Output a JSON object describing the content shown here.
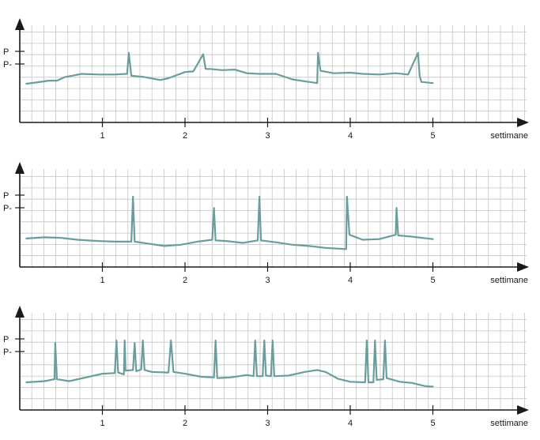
{
  "chart_data": [
    {
      "type": "line",
      "xlabel": "settimane",
      "x_ticks": [
        "1",
        "2",
        "3",
        "4",
        "5"
      ],
      "y_ticks": [
        "P",
        "P-"
      ],
      "xlim": [
        0,
        6
      ],
      "ylim": [
        0,
        10
      ],
      "grid": true,
      "color": "#6a9e9c",
      "series": [
        {
          "x": [
            0.08,
            0.2,
            0.35,
            0.45,
            0.55,
            0.6,
            0.75,
            0.95,
            1.15,
            1.3,
            1.32,
            1.35,
            1.5,
            1.7,
            1.8,
            2.0,
            2.1,
            2.22,
            2.25,
            2.3,
            2.45,
            2.6,
            2.75,
            2.9,
            3.1,
            3.3,
            3.5,
            3.6,
            3.61,
            3.64,
            3.8,
            4.0,
            4.15,
            4.35,
            4.55,
            4.7,
            4.82,
            4.84,
            4.86,
            5.0
          ],
          "y": [
            5.0,
            5.2,
            5.5,
            5.5,
            6.1,
            6.2,
            6.6,
            6.5,
            6.5,
            6.6,
            10.0,
            6.3,
            6.1,
            5.6,
            5.9,
            6.9,
            7.0,
            9.8,
            7.4,
            7.4,
            7.2,
            7.3,
            6.7,
            6.6,
            6.6,
            5.7,
            5.3,
            5.1,
            10.0,
            7.1,
            6.7,
            6.8,
            6.6,
            6.5,
            6.7,
            6.5,
            10.0,
            6.3,
            5.3,
            5.1
          ]
        }
      ]
    },
    {
      "type": "line",
      "xlabel": "settimane",
      "x_ticks": [
        "1",
        "2",
        "3",
        "4",
        "5"
      ],
      "y_ticks": [
        "P",
        "P-"
      ],
      "xlim": [
        0,
        6
      ],
      "ylim": [
        0,
        10
      ],
      "grid": true,
      "color": "#6a9e9c",
      "series": [
        {
          "x": [
            0.08,
            0.3,
            0.5,
            0.7,
            0.95,
            1.15,
            1.35,
            1.37,
            1.39,
            1.55,
            1.75,
            1.95,
            2.15,
            2.33,
            2.35,
            2.37,
            2.5,
            2.7,
            2.88,
            2.9,
            2.92,
            3.1,
            3.3,
            3.5,
            3.7,
            3.95,
            3.96,
            3.99,
            4.15,
            4.35,
            4.55,
            4.56,
            4.58,
            4.75,
            5.0
          ],
          "y": [
            3.3,
            3.5,
            3.4,
            3.1,
            2.9,
            2.8,
            2.8,
            10.0,
            2.8,
            2.5,
            2.1,
            2.3,
            2.8,
            3.1,
            8.2,
            3.0,
            2.9,
            2.6,
            3.0,
            10.0,
            3.0,
            2.7,
            2.3,
            2.1,
            1.8,
            1.6,
            10.0,
            3.9,
            3.1,
            3.2,
            3.9,
            8.2,
            3.8,
            3.6,
            3.2
          ]
        }
      ]
    },
    {
      "type": "line",
      "xlabel": "settimane",
      "x_ticks": [
        "1",
        "2",
        "3",
        "4",
        "5"
      ],
      "y_ticks": [
        "P",
        "P-"
      ],
      "xlim": [
        0,
        6
      ],
      "ylim": [
        0,
        10
      ],
      "grid": true,
      "color": "#6a9e9c",
      "series": [
        {
          "x": [
            0.08,
            0.3,
            0.42,
            0.43,
            0.45,
            0.6,
            0.8,
            1.0,
            1.15,
            1.17,
            1.19,
            1.26,
            1.27,
            1.28,
            1.37,
            1.39,
            1.41,
            1.47,
            1.49,
            1.51,
            1.6,
            1.8,
            1.83,
            1.86,
            2.0,
            2.2,
            2.35,
            2.37,
            2.39,
            2.55,
            2.75,
            2.83,
            2.85,
            2.87,
            2.94,
            2.96,
            2.98,
            3.04,
            3.06,
            3.08,
            3.25,
            3.45,
            3.6,
            3.7,
            3.85,
            4.0,
            4.18,
            4.2,
            4.22,
            4.28,
            4.3,
            4.32,
            4.4,
            4.42,
            4.44,
            4.6,
            4.75,
            4.9,
            5.0
          ],
          "y": [
            3.2,
            3.4,
            3.7,
            9.6,
            3.7,
            3.4,
            4.0,
            4.6,
            4.7,
            10.0,
            4.8,
            4.5,
            10.0,
            5.1,
            5.2,
            9.6,
            5.0,
            5.3,
            10.0,
            5.2,
            4.9,
            4.8,
            10.0,
            4.9,
            4.6,
            4.1,
            4.0,
            10.0,
            3.9,
            4.0,
            4.4,
            4.2,
            10.0,
            4.2,
            4.2,
            10.0,
            4.3,
            4.2,
            10.0,
            4.2,
            4.3,
            4.9,
            5.2,
            4.9,
            3.8,
            3.3,
            3.2,
            10.0,
            3.2,
            3.2,
            10.0,
            3.6,
            3.7,
            10.0,
            3.9,
            3.3,
            3.1,
            2.6,
            2.5
          ]
        }
      ]
    }
  ]
}
